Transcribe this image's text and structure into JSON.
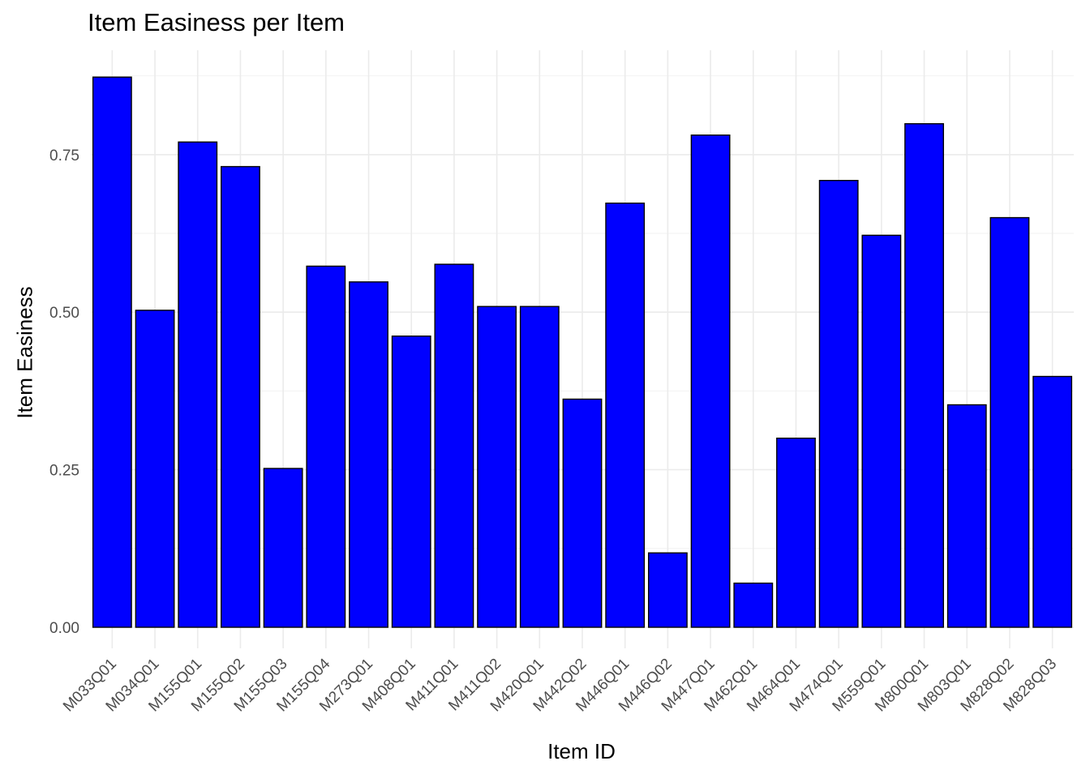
{
  "chart_data": {
    "type": "bar",
    "title": "Item Easiness per Item",
    "xlabel": "Item ID",
    "ylabel": "Item Easiness",
    "ylim": [
      0,
      0.9
    ],
    "yticks": [
      "0.00",
      "0.25",
      "0.50",
      "0.75"
    ],
    "ytick_values": [
      0,
      0.25,
      0.5,
      0.75
    ],
    "grid": true,
    "legend": "none",
    "bar_color": "#0000ff",
    "bar_outline": "#000000",
    "grid_color": "#ebebeb",
    "categories": [
      "M033Q01",
      "M034Q01",
      "M155Q01",
      "M155Q02",
      "M155Q03",
      "M155Q04",
      "M273Q01",
      "M408Q01",
      "M411Q01",
      "M411Q02",
      "M420Q01",
      "M442Q02",
      "M446Q01",
      "M446Q02",
      "M447Q01",
      "M462Q01",
      "M464Q01",
      "M474Q01",
      "M559Q01",
      "M800Q01",
      "M803Q01",
      "M828Q02",
      "M828Q03"
    ],
    "values": [
      0.873,
      0.503,
      0.77,
      0.731,
      0.252,
      0.573,
      0.548,
      0.462,
      0.576,
      0.509,
      0.509,
      0.362,
      0.673,
      0.118,
      0.781,
      0.07,
      0.3,
      0.709,
      0.622,
      0.799,
      0.353,
      0.65,
      0.398
    ]
  }
}
